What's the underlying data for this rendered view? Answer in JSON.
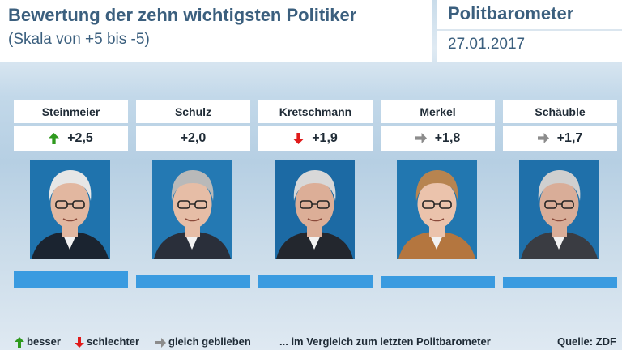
{
  "header": {
    "title": "Bewertung der zehn wichtigsten Politiker",
    "subtitle": "(Skala von +5 bis -5)",
    "brand": "Politbarometer",
    "date": "27.01.2017"
  },
  "colors": {
    "bar": "#3a9be0",
    "up": "#2f9a1e",
    "down": "#e01a1a",
    "same": "#8c8c8c",
    "title": "#3b5f7e"
  },
  "chart_data": {
    "type": "bar",
    "categories": [
      "Steinmeier",
      "Schulz",
      "Kretschmann",
      "Merkel",
      "Schäuble"
    ],
    "values": [
      2.5,
      2.0,
      1.9,
      1.8,
      1.7
    ],
    "value_labels": [
      "+2,5",
      "+2,0",
      "+1,9",
      "+1,8",
      "+1,7"
    ],
    "trend": [
      "up",
      "none",
      "down",
      "same",
      "same"
    ],
    "ylim": [
      -5,
      5
    ]
  },
  "legend": {
    "up_label": "besser",
    "down_label": "schlechter",
    "same_label": "gleich geblieben",
    "note": "... im Vergleich zum letzten Politbarometer",
    "source": "Quelle: ZDF"
  }
}
